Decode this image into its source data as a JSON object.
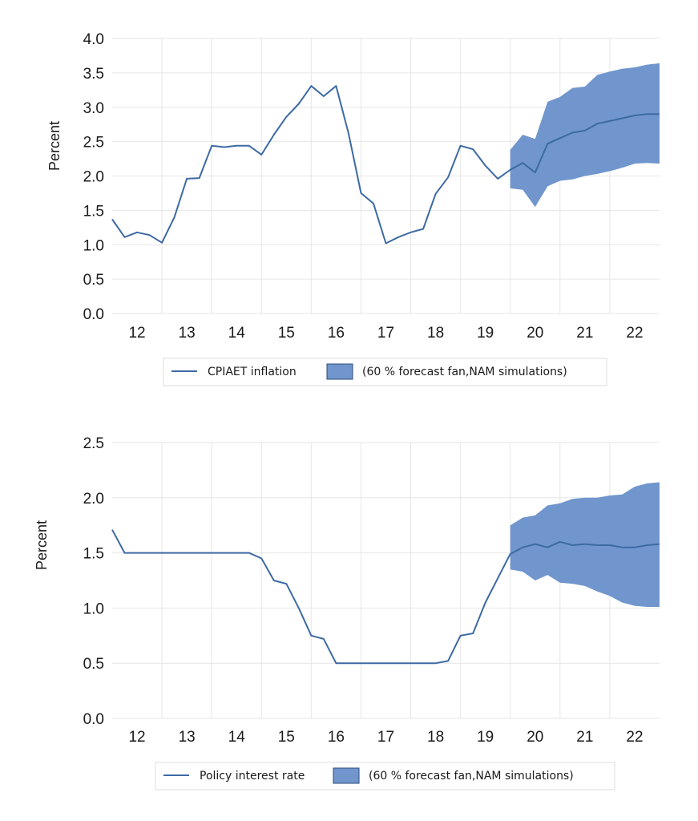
{
  "colors": {
    "line": "#3d6aa3",
    "fan": "#7096cd",
    "fan_stroke": "#2e4a78",
    "grid": "#e6e6e6"
  },
  "chart_data": [
    {
      "type": "line",
      "ylabel": "Percent",
      "ylim": [
        0,
        4
      ],
      "yticks": [
        "0.0",
        "0.5",
        "1.0",
        "1.5",
        "2.0",
        "2.5",
        "3.0",
        "3.5",
        "4.0"
      ],
      "xlim": [
        11.5,
        22.5
      ],
      "xticks": [
        "12",
        "13",
        "14",
        "15",
        "16",
        "17",
        "18",
        "19",
        "20",
        "21",
        "22"
      ],
      "grid": true,
      "legend_position": "bottom",
      "series": [
        {
          "name": "CPIAET inflation",
          "type": "line",
          "x": [
            11.5,
            11.75,
            12,
            12.25,
            12.5,
            12.75,
            13,
            13.25,
            13.5,
            13.75,
            14,
            14.25,
            14.5,
            14.75,
            15,
            15.25,
            15.5,
            15.75,
            16,
            16.25,
            16.5,
            16.75,
            17,
            17.25,
            17.5,
            17.75,
            18,
            18.25,
            18.5,
            18.75,
            19,
            19.25,
            19.5,
            19.75,
            20,
            20.25,
            20.5,
            20.75,
            21,
            21.25,
            21.5,
            21.75,
            22,
            22.25,
            22.5
          ],
          "values": [
            1.37,
            1.11,
            1.18,
            1.14,
            1.03,
            1.4,
            1.96,
            1.97,
            2.44,
            2.42,
            2.44,
            2.44,
            2.31,
            2.6,
            2.86,
            3.05,
            3.31,
            3.16,
            3.31,
            2.62,
            1.75,
            1.6,
            1.02,
            1.11,
            1.18,
            1.23,
            1.74,
            1.98,
            2.44,
            2.39,
            2.15,
            1.96,
            2.09,
            2.19,
            2.05,
            2.47,
            2.55,
            2.63,
            2.66,
            2.76,
            2.8,
            2.84,
            2.88,
            2.9,
            2.9
          ]
        },
        {
          "name": "(60 % forecast fan,NAM simulations)",
          "type": "area-band",
          "x": [
            19.5,
            19.75,
            20,
            20.25,
            20.5,
            20.75,
            21,
            21.25,
            21.5,
            21.75,
            22,
            22.25,
            22.5
          ],
          "upper": [
            2.38,
            2.6,
            2.54,
            3.08,
            3.15,
            3.28,
            3.3,
            3.47,
            3.52,
            3.56,
            3.58,
            3.62,
            3.64
          ],
          "lower": [
            1.82,
            1.8,
            1.55,
            1.85,
            1.93,
            1.95,
            2.0,
            2.03,
            2.07,
            2.12,
            2.18,
            2.19,
            2.18
          ]
        }
      ]
    },
    {
      "type": "line",
      "ylabel": "Percent",
      "ylim": [
        0,
        2.5
      ],
      "yticks": [
        "0.0",
        "0.5",
        "1.0",
        "1.5",
        "2.0",
        "2.5"
      ],
      "xlim": [
        11.5,
        22.5
      ],
      "xticks": [
        "12",
        "13",
        "14",
        "15",
        "16",
        "17",
        "18",
        "19",
        "20",
        "21",
        "22"
      ],
      "grid": true,
      "legend_position": "bottom",
      "series": [
        {
          "name": "Policy interest rate",
          "type": "line",
          "x": [
            11.5,
            11.75,
            12,
            12.25,
            12.5,
            12.75,
            13,
            13.25,
            13.5,
            13.75,
            14,
            14.25,
            14.5,
            14.75,
            15,
            15.25,
            15.5,
            15.75,
            16,
            16.25,
            16.5,
            16.75,
            17,
            17.25,
            17.5,
            17.75,
            18,
            18.25,
            18.5,
            18.75,
            19,
            19.25,
            19.5,
            19.75,
            20,
            20.25,
            20.5,
            20.75,
            21,
            21.25,
            21.5,
            21.75,
            22,
            22.25,
            22.5
          ],
          "values": [
            1.71,
            1.5,
            1.5,
            1.5,
            1.5,
            1.5,
            1.5,
            1.5,
            1.5,
            1.5,
            1.5,
            1.5,
            1.45,
            1.25,
            1.22,
            1.0,
            0.75,
            0.72,
            0.5,
            0.5,
            0.5,
            0.5,
            0.5,
            0.5,
            0.5,
            0.5,
            0.5,
            0.52,
            0.75,
            0.77,
            1.05,
            1.27,
            1.49,
            1.55,
            1.58,
            1.55,
            1.6,
            1.57,
            1.58,
            1.57,
            1.57,
            1.55,
            1.55,
            1.57,
            1.58
          ]
        },
        {
          "name": "(60 % forecast fan,NAM simulations)",
          "type": "area-band",
          "x": [
            19.5,
            19.75,
            20,
            20.25,
            20.5,
            20.75,
            21,
            21.25,
            21.5,
            21.75,
            22,
            22.25,
            22.5
          ],
          "upper": [
            1.75,
            1.82,
            1.84,
            1.93,
            1.95,
            1.99,
            2.0,
            2.0,
            2.02,
            2.03,
            2.1,
            2.13,
            2.14
          ],
          "lower": [
            1.35,
            1.33,
            1.25,
            1.3,
            1.23,
            1.22,
            1.2,
            1.15,
            1.11,
            1.05,
            1.02,
            1.01,
            1.01
          ]
        }
      ]
    }
  ]
}
